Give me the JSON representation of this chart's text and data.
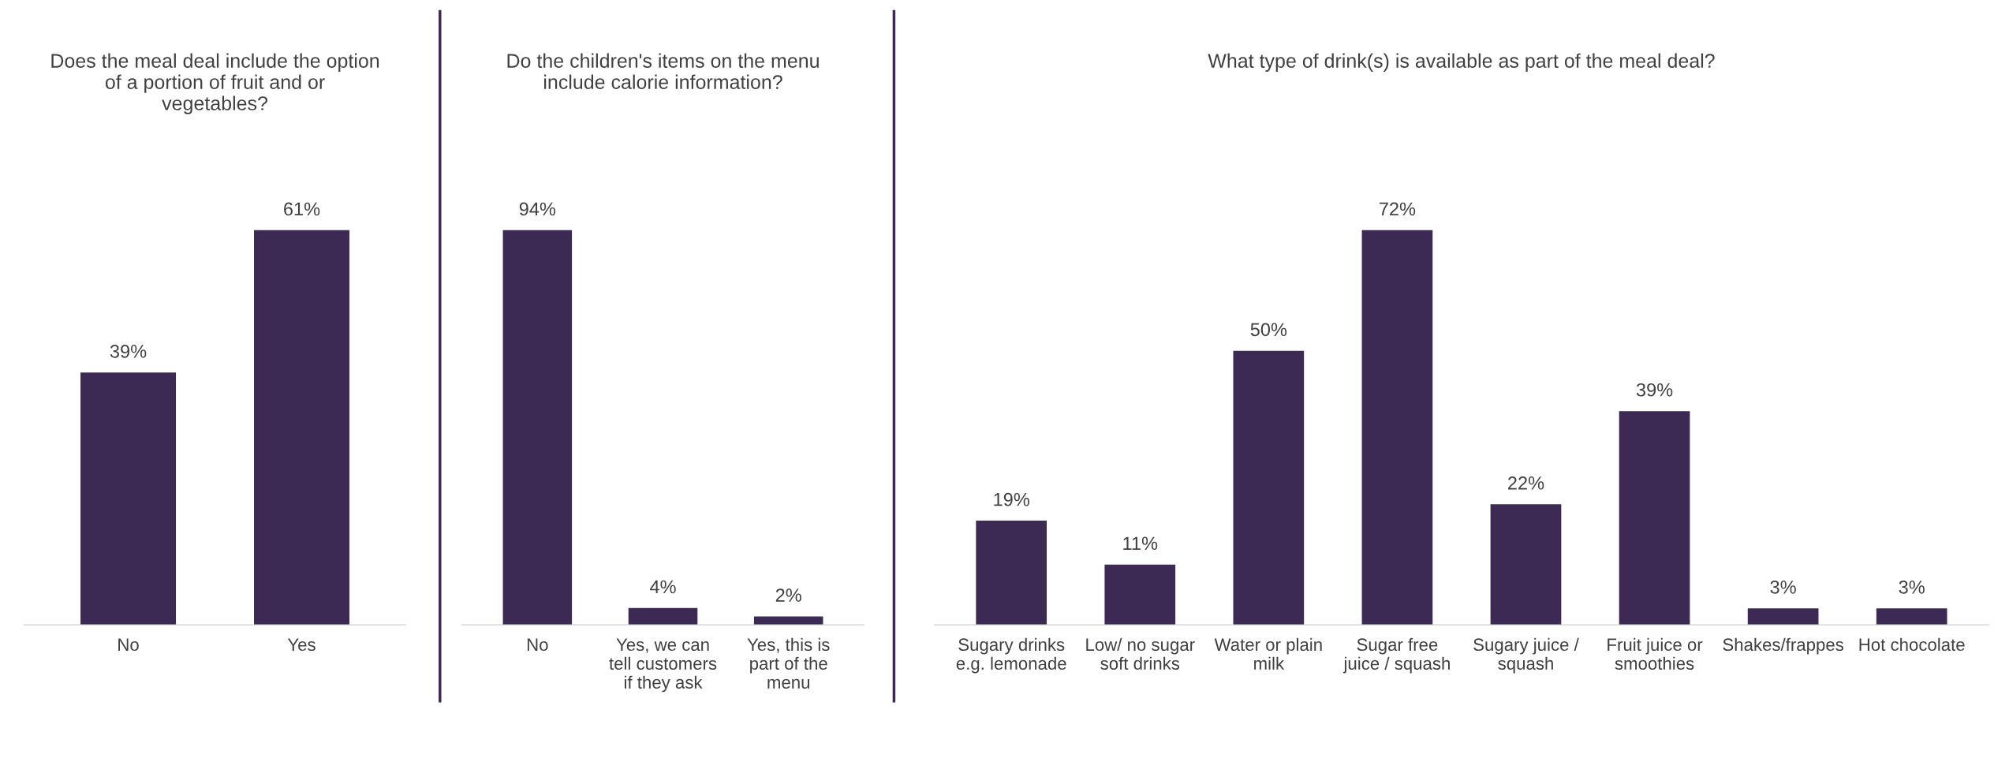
{
  "chart_data": [
    {
      "type": "bar",
      "title": "Does the meal deal include the option of a portion of fruit and or vegetables?",
      "categories": [
        "No",
        "Yes"
      ],
      "values": [
        39,
        61
      ],
      "value_labels": [
        "39%",
        "61%"
      ],
      "color": "#3d2a54",
      "tick_labels": "x"
    },
    {
      "type": "bar",
      "title": "Do the children's items on the menu include calorie information?",
      "categories": [
        "No",
        "Yes, we can tell customers if they ask",
        "Yes, this is part of the menu"
      ],
      "values": [
        94,
        4,
        2
      ],
      "value_labels": [
        "94%",
        "4%",
        "2%"
      ],
      "color": "#3d2a54",
      "tick_labels": "x"
    },
    {
      "type": "bar",
      "title": "What type of drink(s) is available as part of the meal deal?",
      "categories": [
        "Sugary drinks e.g. lemonade",
        "Low/ no sugar soft drinks",
        "Water or plain milk",
        "Sugar free juice / squash",
        "Sugary juice / squash",
        "Fruit juice or smoothies",
        "Shakes/frappes",
        "Hot chocolate"
      ],
      "values": [
        19,
        11,
        50,
        72,
        22,
        39,
        3,
        3
      ],
      "value_labels": [
        "19%",
        "11%",
        "50%",
        "72%",
        "22%",
        "39%",
        "3%",
        "3%"
      ],
      "color": "#3d2a54",
      "tick_labels": "x"
    }
  ]
}
